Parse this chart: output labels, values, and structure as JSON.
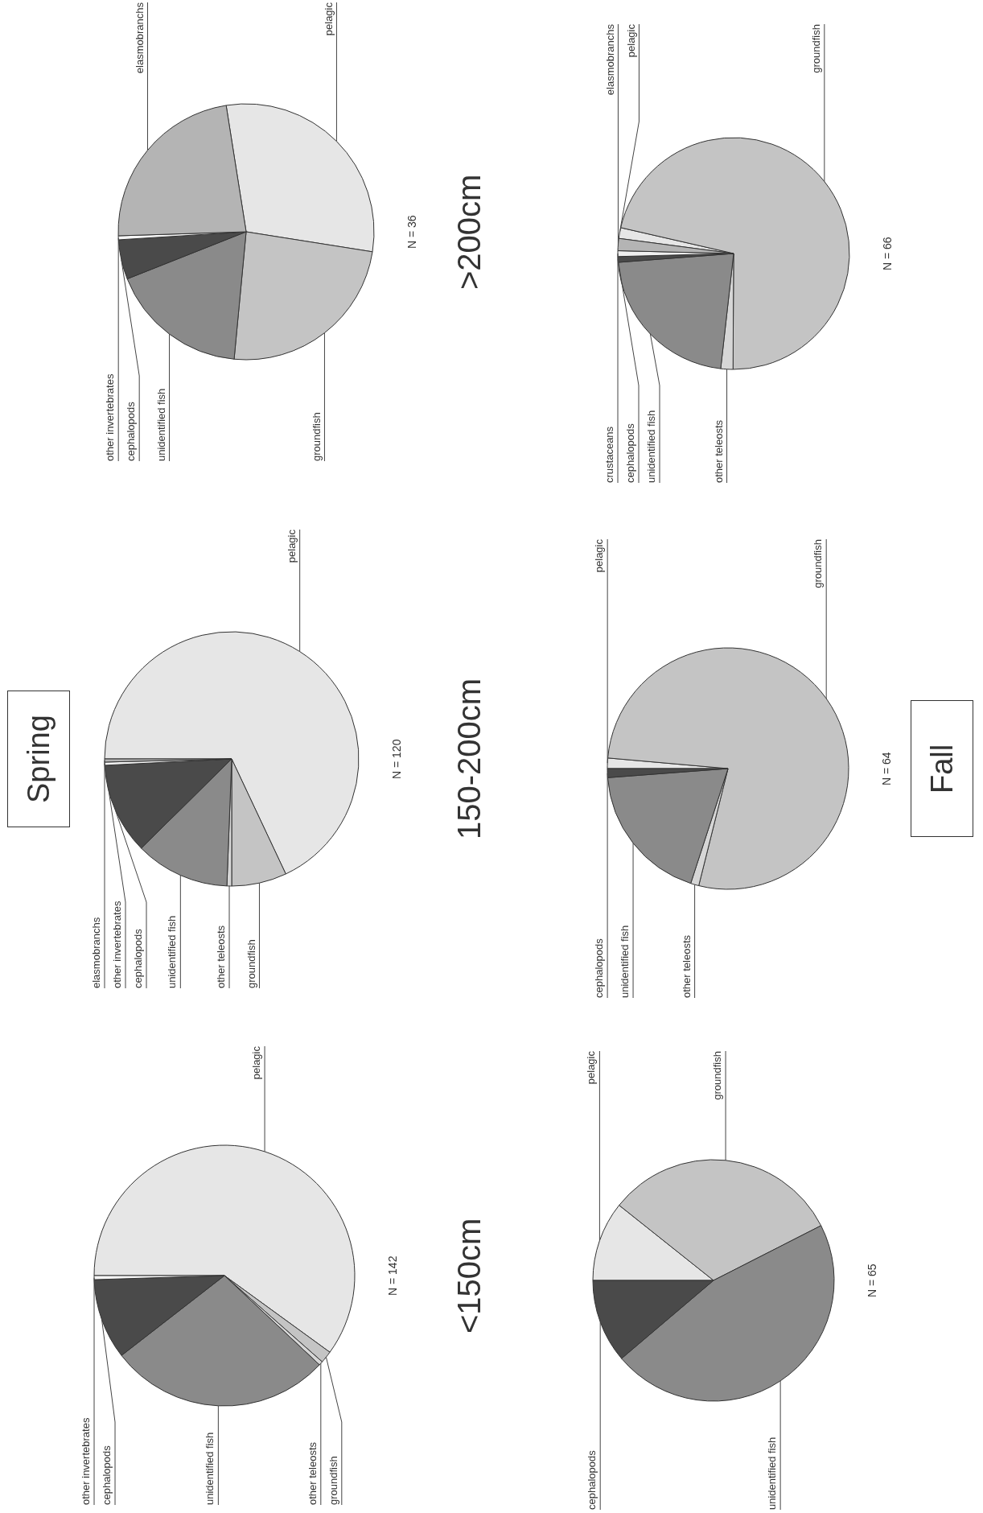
{
  "chart_data": [
    {
      "type": "pie",
      "subtitle": "<150cm",
      "annotations": [
        "N = 142"
      ],
      "categories": [
        "pelagic",
        "groundfish",
        "other teleosts",
        "unidentified fish",
        "cephalopods",
        "other invertebrates"
      ],
      "values": [
        60,
        1.5,
        0.5,
        27.5,
        10,
        0.5
      ],
      "colors": [
        "#e6e6e6",
        "#c4c4c4",
        "#d6d6d6",
        "#8a8a8a",
        "#4a4a4a",
        "#f5f5f5"
      ]
    },
    {
      "type": "pie",
      "title": "Spring",
      "subtitle": "150-200cm",
      "annotations": [
        "N = 120"
      ],
      "categories": [
        "pelagic",
        "groundfish",
        "other teleosts",
        "unidentified fish",
        "cephalopods",
        "other invertebrates",
        "elasmobranchs"
      ],
      "values": [
        68,
        7,
        0.6,
        12,
        11.6,
        0.4,
        0.4
      ],
      "colors": [
        "#e6e6e6",
        "#c4c4c4",
        "#d6d6d6",
        "#8a8a8a",
        "#4a4a4a",
        "#f5f5f5",
        "#b4b4b4"
      ]
    },
    {
      "type": "pie",
      "subtitle": ">200cm",
      "annotations": [
        "N = 36"
      ],
      "categories": [
        "pelagic",
        "groundfish",
        "unidentified fish",
        "cephalopods",
        "other invertebrates",
        "elasmobranchs"
      ],
      "values": [
        30,
        24,
        17.5,
        5,
        0.5,
        23
      ],
      "colors": [
        "#e6e6e6",
        "#c4c4c4",
        "#8a8a8a",
        "#4a4a4a",
        "#f5f5f5",
        "#b4b4b4"
      ]
    },
    {
      "type": "pie",
      "annotations": [
        "N = 65"
      ],
      "categories": [
        "pelagic",
        "groundfish",
        "unidentified fish",
        "cephalopods"
      ],
      "values": [
        10.7,
        31.8,
        46.3,
        11.2
      ],
      "colors": [
        "#e6e6e6",
        "#c4c4c4",
        "#8a8a8a",
        "#4a4a4a"
      ]
    },
    {
      "type": "pie",
      "title": "Fall",
      "annotations": [
        "N = 64"
      ],
      "categories": [
        "pelagic",
        "groundfish",
        "other teleosts",
        "unidentified fish",
        "cephalopods"
      ],
      "values": [
        1.4,
        77.5,
        1.1,
        18.8,
        1.2
      ],
      "colors": [
        "#e6e6e6",
        "#c4c4c4",
        "#d6d6d6",
        "#8a8a8a",
        "#4a4a4a"
      ]
    },
    {
      "type": "pie",
      "annotations": [
        "N = 66"
      ],
      "categories": [
        "pelagic",
        "groundfish",
        "other teleosts",
        "unidentified fish",
        "cephalopods",
        "crustaceans",
        "elasmobranchs"
      ],
      "values": [
        1.5,
        71.5,
        1.7,
        22,
        0.8,
        0.8,
        1.7
      ],
      "colors": [
        "#e6e6e6",
        "#c4c4c4",
        "#d6d6d6",
        "#8a8a8a",
        "#4a4a4a",
        "#f0f0f0",
        "#b4b4b4"
      ]
    }
  ]
}
